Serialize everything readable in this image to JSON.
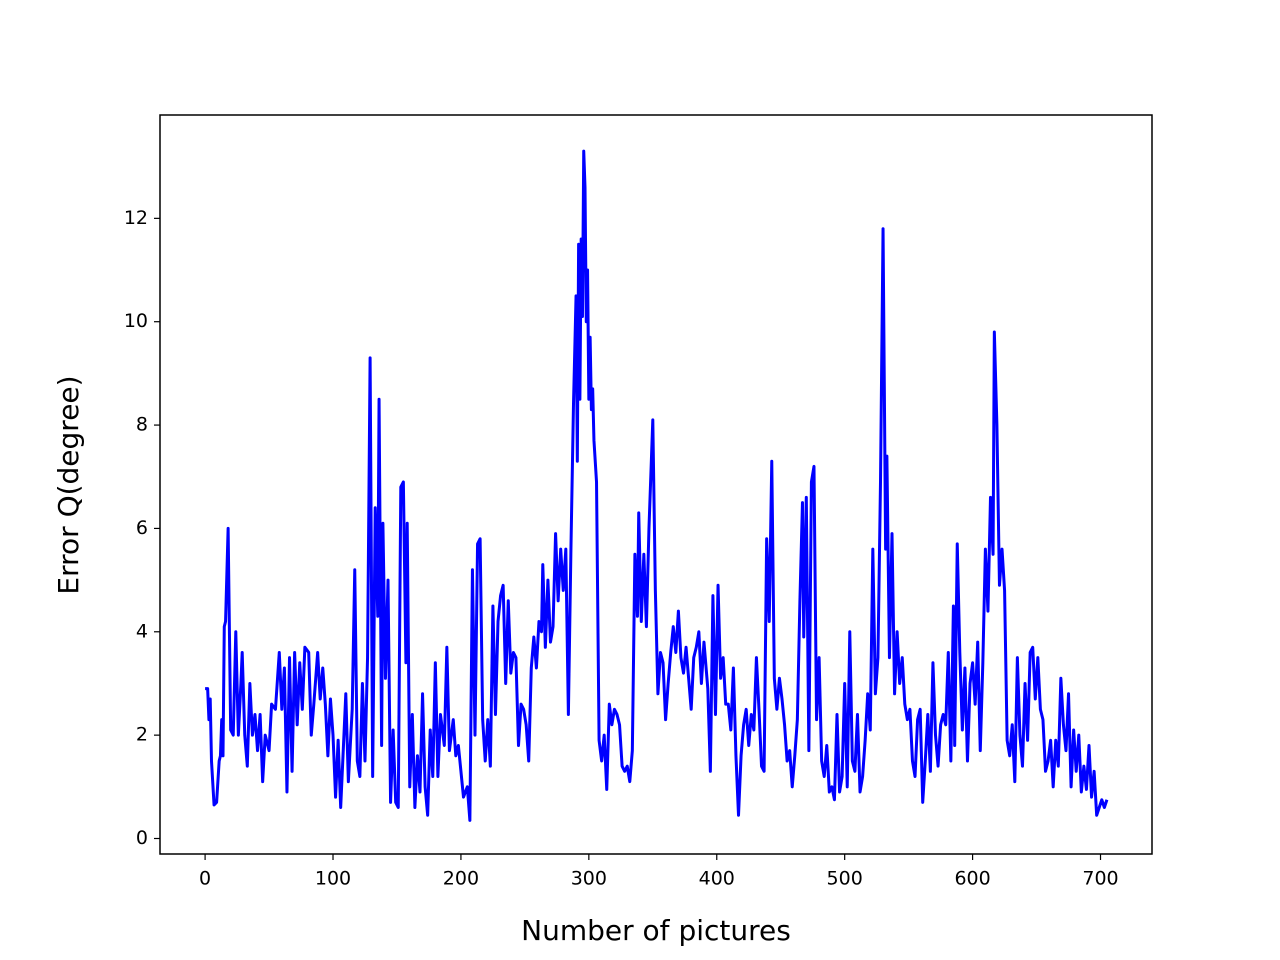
{
  "chart_data": {
    "type": "line",
    "xlabel": "Number of pictures",
    "ylabel": "Error Q(degree)",
    "xlim": [
      -35.25,
      740.25
    ],
    "ylim": [
      -0.3,
      14.0
    ],
    "xticks": [
      0,
      100,
      200,
      300,
      400,
      500,
      600,
      700
    ],
    "yticks": [
      0,
      2,
      4,
      6,
      8,
      10,
      12
    ],
    "grid": false,
    "x": [
      0,
      2,
      3,
      4,
      5,
      7,
      9,
      11,
      12,
      13,
      14,
      15,
      16,
      18,
      20,
      22,
      24,
      26,
      28,
      29,
      31,
      33,
      35,
      37,
      39,
      41,
      43,
      45,
      47,
      50,
      52,
      55,
      58,
      60,
      62,
      64,
      66,
      68,
      70,
      72,
      74,
      76,
      78,
      81,
      83,
      85,
      88,
      90,
      92,
      94,
      96,
      98,
      100,
      102,
      104,
      106,
      108,
      110,
      112,
      115,
      117,
      119,
      121,
      123,
      125,
      127,
      129,
      131,
      133,
      135,
      136,
      138,
      139,
      141,
      143,
      145,
      147,
      149,
      151,
      153,
      155,
      157,
      158,
      160,
      162,
      164,
      166,
      168,
      170,
      172,
      174,
      176,
      178,
      180,
      182,
      184,
      187,
      189,
      191,
      194,
      196,
      198,
      200,
      202,
      205,
      207,
      209,
      211,
      213,
      215,
      217,
      219,
      221,
      223,
      225,
      227,
      229,
      231,
      233,
      235,
      237,
      239,
      241,
      243,
      245,
      247,
      249,
      251,
      253,
      255,
      257,
      259,
      261,
      263,
      264,
      266,
      268,
      270,
      272,
      274,
      276,
      278,
      280,
      282,
      284,
      286,
      288,
      290,
      291,
      292,
      293,
      294,
      295,
      296,
      297,
      298,
      299,
      300,
      301,
      302,
      303,
      304,
      306,
      308,
      310,
      312,
      314,
      316,
      318,
      320,
      322,
      324,
      326,
      328,
      330,
      332,
      334,
      336,
      338,
      339,
      341,
      343,
      345,
      347,
      350,
      352,
      354,
      356,
      358,
      360,
      362,
      364,
      366,
      368,
      370,
      372,
      374,
      376,
      378,
      380,
      382,
      384,
      386,
      388,
      390,
      393,
      395,
      397,
      399,
      401,
      403,
      405,
      407,
      409,
      411,
      413,
      415,
      417,
      419,
      421,
      423,
      425,
      427,
      429,
      431,
      433,
      435,
      437,
      439,
      441,
      443,
      445,
      447,
      449,
      451,
      453,
      455,
      457,
      459,
      461,
      463,
      465,
      467,
      468,
      470,
      472,
      474,
      476,
      478,
      480,
      482,
      484,
      486,
      488,
      490,
      492,
      494,
      496,
      498,
      500,
      502,
      504,
      506,
      508,
      510,
      512,
      514,
      516,
      518,
      520,
      522,
      524,
      526,
      528,
      530,
      532,
      533,
      535,
      537,
      539,
      541,
      543,
      545,
      547,
      549,
      551,
      553,
      555,
      557,
      559,
      561,
      563,
      565,
      567,
      569,
      571,
      573,
      575,
      577,
      579,
      581,
      583,
      585,
      586,
      588,
      590,
      592,
      594,
      596,
      598,
      600,
      602,
      604,
      606,
      608,
      610,
      612,
      614,
      616,
      617,
      619,
      621,
      623,
      625,
      627,
      629,
      631,
      633,
      635,
      637,
      639,
      641,
      643,
      645,
      647,
      649,
      651,
      653,
      655,
      657,
      659,
      661,
      663,
      665,
      667,
      669,
      671,
      673,
      675,
      677,
      679,
      681,
      683,
      685,
      687,
      689,
      691,
      693,
      695,
      697,
      699,
      701,
      703,
      705
    ],
    "series": [
      {
        "color": "#0000ff",
        "values": [
          2.9,
          2.9,
          2.3,
          2.7,
          1.5,
          0.65,
          0.7,
          1.5,
          1.6,
          2.3,
          1.6,
          4.1,
          4.2,
          6.0,
          2.1,
          2.0,
          4.0,
          2.0,
          3.0,
          3.6,
          2.0,
          1.4,
          3.0,
          2.0,
          2.4,
          1.7,
          2.4,
          1.1,
          2.0,
          1.7,
          2.6,
          2.5,
          3.6,
          2.5,
          3.3,
          0.9,
          3.5,
          1.3,
          3.6,
          2.2,
          3.4,
          2.5,
          3.7,
          3.6,
          2.0,
          2.6,
          3.6,
          2.7,
          3.3,
          2.6,
          1.6,
          2.7,
          2.0,
          0.8,
          1.9,
          0.6,
          1.7,
          2.8,
          1.1,
          2.5,
          5.2,
          1.5,
          1.2,
          3.0,
          1.5,
          3.5,
          9.3,
          1.2,
          6.4,
          4.3,
          8.5,
          1.8,
          6.1,
          3.1,
          5.0,
          0.7,
          2.1,
          0.7,
          0.6,
          6.8,
          6.9,
          3.4,
          6.1,
          1.0,
          2.4,
          0.6,
          1.6,
          0.9,
          2.8,
          1.0,
          0.45,
          2.1,
          1.2,
          3.4,
          1.2,
          2.4,
          1.8,
          3.7,
          1.7,
          2.3,
          1.6,
          1.8,
          1.3,
          0.8,
          1.0,
          0.35,
          5.2,
          2.0,
          5.7,
          5.8,
          2.3,
          1.5,
          2.3,
          1.4,
          4.5,
          2.4,
          4.2,
          4.7,
          4.9,
          3.0,
          4.6,
          3.2,
          3.6,
          3.5,
          1.8,
          2.6,
          2.5,
          2.2,
          1.5,
          3.3,
          3.9,
          3.3,
          4.2,
          4.0,
          5.3,
          3.7,
          5.0,
          3.8,
          4.1,
          5.9,
          4.6,
          5.6,
          4.8,
          5.6,
          2.4,
          5.6,
          8.4,
          10.5,
          7.3,
          11.5,
          8.5,
          11.6,
          10.1,
          13.3,
          12.6,
          10.0,
          11.0,
          8.5,
          9.7,
          8.3,
          8.7,
          7.7,
          6.9,
          1.9,
          1.5,
          2.0,
          0.95,
          2.6,
          2.2,
          2.5,
          2.4,
          2.2,
          1.4,
          1.3,
          1.4,
          1.1,
          1.7,
          5.5,
          4.3,
          6.3,
          4.2,
          5.5,
          4.1,
          6.0,
          8.1,
          4.8,
          2.8,
          3.6,
          3.4,
          2.3,
          3.0,
          3.6,
          4.1,
          3.6,
          4.4,
          3.5,
          3.2,
          3.7,
          3.1,
          2.5,
          3.5,
          3.7,
          4.0,
          3.0,
          3.8,
          2.9,
          1.3,
          4.7,
          2.4,
          4.9,
          3.1,
          3.5,
          2.6,
          2.6,
          2.1,
          3.3,
          1.6,
          0.45,
          1.6,
          2.2,
          2.5,
          1.8,
          2.4,
          2.1,
          3.5,
          2.5,
          1.4,
          1.3,
          5.8,
          4.2,
          7.3,
          3.1,
          2.5,
          3.1,
          2.7,
          2.2,
          1.5,
          1.7,
          1.0,
          1.6,
          2.3,
          4.6,
          6.5,
          3.9,
          6.6,
          1.7,
          6.9,
          7.2,
          2.3,
          3.5,
          1.5,
          1.2,
          1.8,
          0.9,
          1.0,
          0.75,
          2.4,
          0.9,
          1.2,
          3.0,
          1.0,
          4.0,
          1.5,
          1.3,
          2.4,
          0.9,
          1.2,
          1.9,
          2.8,
          2.1,
          5.6,
          2.8,
          3.5,
          6.9,
          11.8,
          5.6,
          7.4,
          3.5,
          5.9,
          2.8,
          4.0,
          3.0,
          3.5,
          2.6,
          2.3,
          2.5,
          1.5,
          1.2,
          2.3,
          2.5,
          0.7,
          1.5,
          2.4,
          1.3,
          3.4,
          2.0,
          1.4,
          2.2,
          2.4,
          2.2,
          3.6,
          1.5,
          4.5,
          1.8,
          5.7,
          3.6,
          2.1,
          3.3,
          1.5,
          3.0,
          3.4,
          2.6,
          3.8,
          1.7,
          3.4,
          5.6,
          4.4,
          6.6,
          5.5,
          9.8,
          8.0,
          4.9,
          5.6,
          4.8,
          1.9,
          1.6,
          2.2,
          1.1,
          3.5,
          2.0,
          1.4,
          3.0,
          1.9,
          3.6,
          3.7,
          2.7,
          3.5,
          2.5,
          2.3,
          1.3,
          1.5,
          1.9,
          1.0,
          1.9,
          1.4,
          3.1,
          2.2,
          1.7,
          2.8,
          1.0,
          2.1,
          1.3,
          2.0,
          0.9,
          1.4,
          0.95,
          1.8,
          0.8,
          1.3,
          0.45,
          0.6,
          0.75,
          0.6,
          0.75
        ]
      }
    ]
  }
}
